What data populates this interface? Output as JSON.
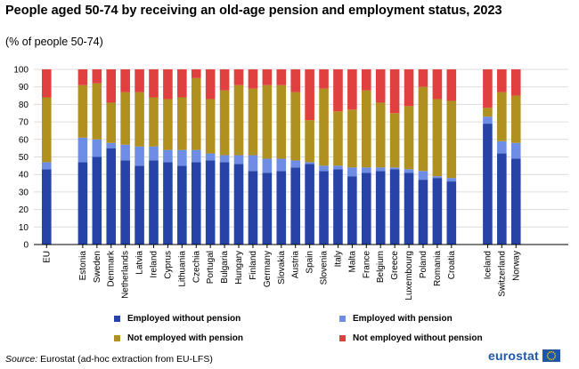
{
  "chart_data": {
    "type": "bar",
    "stacked": true,
    "title": "People aged 50-74 by receiving an old-age pension and employment status, 2023",
    "subtitle": "(% of people 50-74)",
    "ylim": [
      0,
      100
    ],
    "yticks": [
      0,
      10,
      20,
      30,
      40,
      50,
      60,
      70,
      80,
      90,
      100
    ],
    "grid": true,
    "groups": [
      [
        "EU"
      ],
      [
        "Estonia",
        "Sweden",
        "Denmark",
        "Netherlands",
        "Latvia",
        "Ireland",
        "Cyprus",
        "Lithuania",
        "Czechia",
        "Portugal",
        "Bulgaria",
        "Hungary",
        "Finland",
        "Germany",
        "Slovakia",
        "Austria",
        "Spain",
        "Slovenia",
        "Italy",
        "Malta",
        "France",
        "Belgium",
        "Greece",
        "Luxembourg",
        "Poland",
        "Romania",
        "Croatia"
      ],
      [
        "Iceland",
        "Switzerland",
        "Norway"
      ]
    ],
    "categories": [
      "EU",
      "Estonia",
      "Sweden",
      "Denmark",
      "Netherlands",
      "Latvia",
      "Ireland",
      "Cyprus",
      "Lithuania",
      "Czechia",
      "Portugal",
      "Bulgaria",
      "Hungary",
      "Finland",
      "Germany",
      "Slovakia",
      "Austria",
      "Spain",
      "Slovenia",
      "Italy",
      "Malta",
      "France",
      "Belgium",
      "Greece",
      "Luxembourg",
      "Poland",
      "Romania",
      "Croatia",
      "Iceland",
      "Switzerland",
      "Norway"
    ],
    "series": [
      {
        "name": "Employed without pension",
        "color": "#2644a7",
        "values": [
          43,
          47,
          50,
          55,
          48,
          45,
          48,
          47,
          45,
          47,
          48,
          47,
          46,
          42,
          41,
          42,
          44,
          46,
          42,
          43,
          39,
          41,
          42,
          43,
          41,
          37,
          38,
          36,
          69,
          52,
          49
        ]
      },
      {
        "name": "Employed with pension",
        "color": "#6e8ee6",
        "values": [
          4,
          14,
          10,
          3,
          9,
          11,
          8,
          7,
          9,
          7,
          4,
          4,
          5,
          9,
          8,
          7,
          4,
          1,
          3,
          2,
          5,
          3,
          2,
          1,
          2,
          5,
          1,
          2,
          4,
          7,
          9
        ]
      },
      {
        "name": "Not employed with pension",
        "color": "#b09120",
        "values": [
          37,
          30,
          32,
          23,
          30,
          31,
          28,
          29,
          30,
          41,
          31,
          37,
          40,
          38,
          42,
          42,
          39,
          24,
          44,
          31,
          33,
          44,
          37,
          31,
          36,
          48,
          44,
          44,
          5,
          28,
          27
        ]
      },
      {
        "name": "Not employed without pension",
        "color": "#e04040",
        "values": [
          16,
          9,
          8,
          19,
          13,
          13,
          16,
          17,
          16,
          5,
          17,
          12,
          9,
          11,
          9,
          9,
          13,
          29,
          11,
          24,
          23,
          12,
          19,
          25,
          21,
          10,
          17,
          18,
          22,
          13,
          15
        ]
      }
    ],
    "legend_position": "bottom"
  },
  "source": {
    "label": "Source:",
    "text": " Eurostat (ad-hoc extraction from EU-LFS)"
  },
  "logo": {
    "text": "eurostat"
  }
}
